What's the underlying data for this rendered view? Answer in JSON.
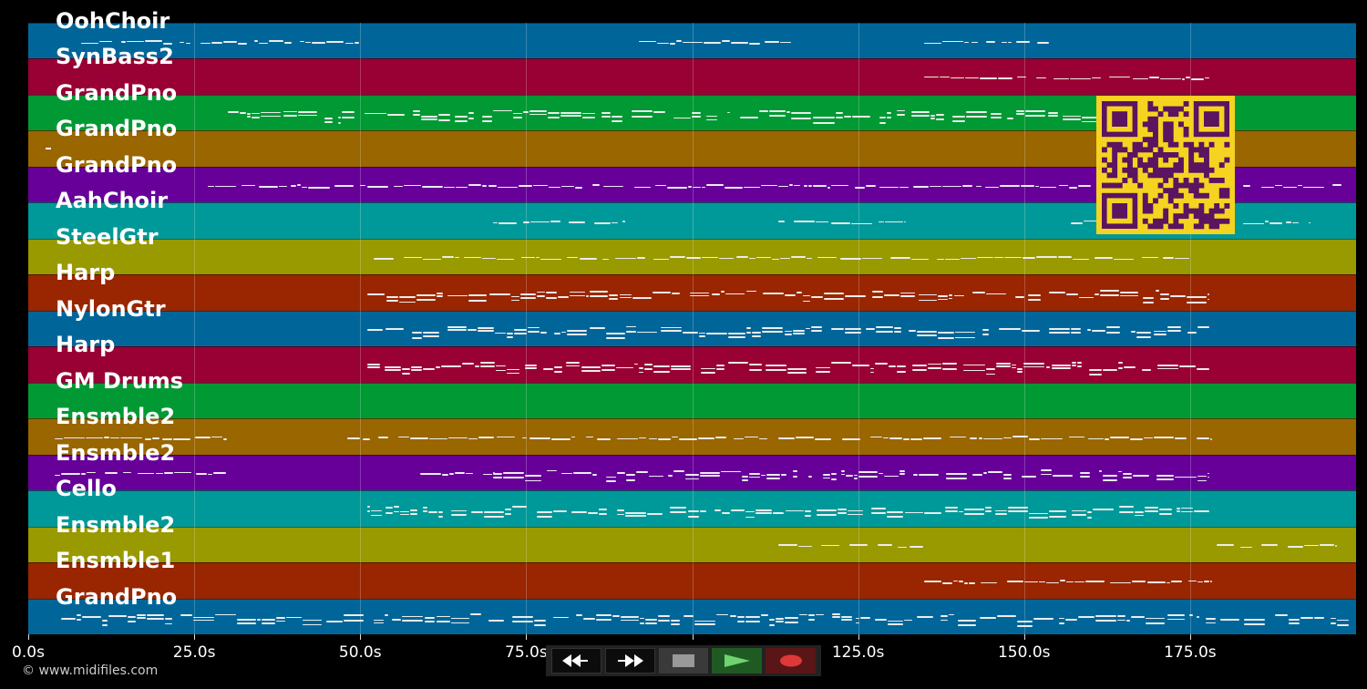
{
  "app": {
    "copyright": "© www.midifiles.com"
  },
  "tracks": [
    {
      "label": "OohChoir",
      "color": "#006699",
      "notes": [
        [
          8,
          50,
          1
        ],
        [
          92,
          115,
          1
        ],
        [
          135,
          155,
          1
        ]
      ]
    },
    {
      "label": "SynBass2",
      "color": "#990033",
      "notes": [
        [
          135,
          178,
          1
        ]
      ]
    },
    {
      "label": "GrandPno",
      "color": "#009933",
      "notes": [
        [
          30,
          178,
          3
        ]
      ]
    },
    {
      "label": "GrandPno",
      "color": "#996600",
      "notes": []
    },
    {
      "label": "GrandPno",
      "color": "#660099",
      "notes": [
        [
          27,
          178,
          1
        ],
        [
          183,
          198,
          1
        ]
      ]
    },
    {
      "label": "AahChoir",
      "color": "#009999",
      "notes": [
        [
          70,
          90,
          1
        ],
        [
          113,
          132,
          1
        ],
        [
          157,
          161,
          1
        ],
        [
          183,
          193,
          1
        ]
      ]
    },
    {
      "label": "SteelGtr",
      "color": "#999900",
      "notes": [
        [
          52,
          175,
          1
        ]
      ]
    },
    {
      "label": "Harp",
      "color": "#992600",
      "notes": [
        [
          51,
          178,
          2
        ]
      ]
    },
    {
      "label": "NylonGtr",
      "color": "#006699",
      "notes": [
        [
          51,
          178,
          3
        ]
      ]
    },
    {
      "label": "Harp",
      "color": "#990033",
      "notes": [
        [
          51,
          178,
          3
        ]
      ]
    },
    {
      "label": "GM Drums",
      "color": "#009933",
      "notes": []
    },
    {
      "label": "Ensmble2",
      "color": "#996600",
      "notes": [
        [
          4,
          30,
          1
        ],
        [
          48,
          178,
          1
        ]
      ]
    },
    {
      "label": "Ensmble2",
      "color": "#660099",
      "notes": [
        [
          4,
          30,
          1
        ],
        [
          59,
          70,
          1
        ],
        [
          70,
          178,
          2
        ]
      ]
    },
    {
      "label": "Cello",
      "color": "#009999",
      "notes": [
        [
          51,
          178,
          2
        ]
      ]
    },
    {
      "label": "Ensmble2",
      "color": "#999900",
      "notes": [
        [
          113,
          135,
          1
        ],
        [
          179,
          197,
          1
        ]
      ]
    },
    {
      "label": "Ensmble1",
      "color": "#992600",
      "notes": [
        [
          135,
          178,
          1
        ]
      ]
    },
    {
      "label": "GrandPno",
      "color": "#006699",
      "notes": [
        [
          5,
          199,
          2
        ]
      ]
    }
  ],
  "timeline": {
    "max_seconds": 200,
    "ticks": [
      {
        "value": 0,
        "label": "0.0s"
      },
      {
        "value": 25,
        "label": "25.0s"
      },
      {
        "value": 50,
        "label": "50.0s"
      },
      {
        "value": 75,
        "label": "75.0s"
      },
      {
        "value": 100,
        "label": "100.0s"
      },
      {
        "value": 125,
        "label": "125.0s"
      },
      {
        "value": 150,
        "label": "150.0s"
      },
      {
        "value": 175,
        "label": "175.0s"
      }
    ]
  },
  "controls": {
    "rewind": "rewind-icon",
    "fast_forward": "fast-forward-icon",
    "stop": "stop-icon",
    "play": "play-icon",
    "record": "record-icon"
  },
  "qr": {
    "fg": "#5a1460",
    "bg": "#f5d320"
  }
}
